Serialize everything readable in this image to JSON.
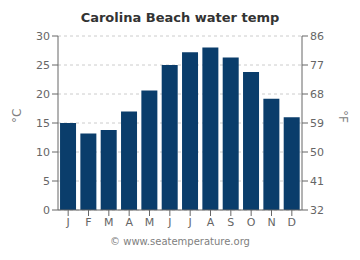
{
  "chart_data": {
    "type": "bar",
    "title": "Carolina Beach water temp",
    "categories": [
      "J",
      "F",
      "M",
      "A",
      "M",
      "J",
      "J",
      "A",
      "S",
      "O",
      "N",
      "D"
    ],
    "values": [
      15.0,
      13.2,
      13.8,
      17.0,
      20.6,
      25.0,
      27.2,
      28.0,
      26.3,
      23.8,
      19.2,
      16.0
    ],
    "color": "#0a3d6b",
    "ylim": [
      0,
      30
    ],
    "yticks": [
      0,
      5,
      10,
      15,
      20,
      25,
      30
    ],
    "ylabel": "°C",
    "y2lim": [
      32,
      86
    ],
    "y2ticks": [
      32,
      41,
      50,
      59,
      68,
      77,
      86
    ],
    "y2label": "°F",
    "grid": true,
    "annotations": [
      "© www.seatemperature.org"
    ]
  }
}
